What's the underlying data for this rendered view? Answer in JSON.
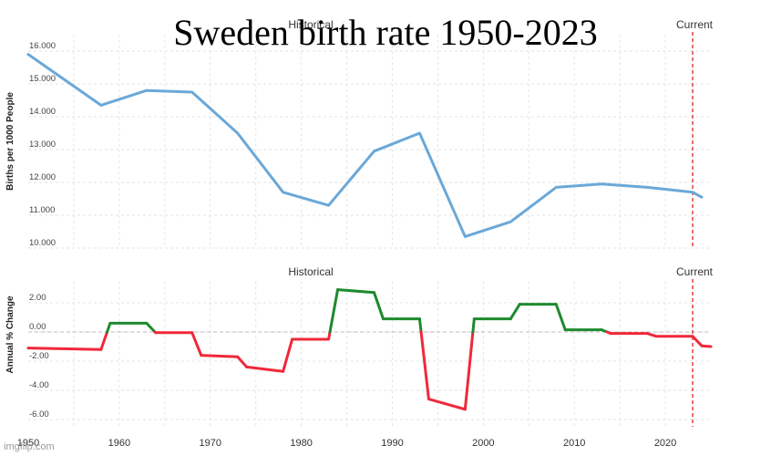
{
  "title": "Sweden birth rate 1950-2023",
  "watermark": "imgflip.com",
  "chart_data": [
    {
      "type": "line",
      "section_label": "Historical",
      "current_label": "Current",
      "ylabel": "Births per 1000 People",
      "xlim": [
        1950,
        2025
      ],
      "ylim": [
        10,
        16.5
      ],
      "yticks": [
        "10.000",
        "11.000",
        "12.000",
        "13.000",
        "14.000",
        "15.000",
        "16.000"
      ],
      "current_year": 2023,
      "line_color": "#6aa8d8",
      "x": [
        1950,
        1958,
        1963,
        1968,
        1973,
        1978,
        1983,
        1988,
        1993,
        1998,
        2003,
        2008,
        2013,
        2018,
        2023,
        2024
      ],
      "y": [
        15.9,
        14.35,
        14.8,
        14.75,
        13.5,
        11.7,
        11.3,
        12.95,
        13.5,
        10.35,
        10.8,
        11.85,
        11.95,
        11.85,
        11.7,
        11.55
      ]
    },
    {
      "type": "line",
      "section_label": "Historical",
      "current_label": "Current",
      "ylabel": "Annual % Change",
      "xlim": [
        1950,
        2025
      ],
      "ylim": [
        -6.5,
        3.5
      ],
      "yticks": [
        "-6.00",
        "-4.00",
        "-2.00",
        "0.00",
        "2.00"
      ],
      "xticks": [
        "1950",
        "1960",
        "1970",
        "1980",
        "1990",
        "2000",
        "2010",
        "2020"
      ],
      "current_year": 2023,
      "positive_color": "#1d8a2e",
      "negative_color": "#f0283a",
      "x": [
        1950,
        1958,
        1959,
        1963,
        1964,
        1968,
        1969,
        1973,
        1974,
        1978,
        1979,
        1983,
        1984,
        1988,
        1989,
        1993,
        1994,
        1998,
        1999,
        2003,
        2004,
        2008,
        2009,
        2013,
        2014,
        2018,
        2019,
        2023,
        2024,
        2025
      ],
      "y": [
        -1.1,
        -1.2,
        0.6,
        0.6,
        -0.05,
        -0.05,
        -1.6,
        -1.7,
        -2.4,
        -2.7,
        -0.5,
        -0.5,
        2.9,
        2.7,
        0.9,
        0.9,
        -4.6,
        -5.3,
        0.9,
        0.9,
        1.9,
        1.9,
        0.15,
        0.15,
        -0.1,
        -0.1,
        -0.3,
        -0.3,
        -0.95,
        -1.0
      ]
    }
  ]
}
